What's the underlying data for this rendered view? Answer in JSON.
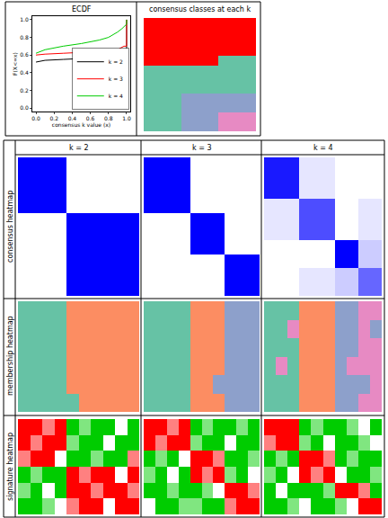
{
  "figure": {
    "row_titles": [
      "consensus heatmap",
      "membership heatmap",
      "signature heatmap"
    ]
  },
  "chart_data": [
    {
      "type": "line",
      "title": "ECDF",
      "x_label": "consensus k value (x)",
      "y_label": "F(X<=x)",
      "xlim": [
        -0.04,
        1.04
      ],
      "ylim": [
        -0.04,
        1.04
      ],
      "xticks": [
        {
          "value": 0,
          "label": "0.0"
        },
        {
          "value": 0.2,
          "label": "0.2"
        },
        {
          "value": 0.4,
          "label": "0.4"
        },
        {
          "value": 0.6,
          "label": "0.6"
        },
        {
          "value": 0.8,
          "label": "0.8"
        },
        {
          "value": 1,
          "label": "1.0"
        }
      ],
      "yticks": [
        {
          "value": 0,
          "label": "0.0"
        },
        {
          "value": 0.2,
          "label": "0.2"
        },
        {
          "value": 0.4,
          "label": "0.4"
        },
        {
          "value": 0.6,
          "label": "0.6"
        },
        {
          "value": 0.8,
          "label": "0.8"
        },
        {
          "value": 1,
          "label": "1.0"
        }
      ],
      "legend": "bottom right",
      "series": [
        {
          "name": "k = 2",
          "color": "#000000",
          "x": [
            0,
            0.1,
            0.3,
            0.5,
            0.7,
            0.9,
            0.97,
            1,
            1
          ],
          "values": [
            0.52,
            0.54,
            0.55,
            0.56,
            0.57,
            0.58,
            0.6,
            0.6,
            1
          ]
        },
        {
          "name": "k = 3",
          "color": "#ff0000",
          "x": [
            0,
            0.1,
            0.3,
            0.5,
            0.7,
            0.9,
            0.97,
            1,
            1
          ],
          "values": [
            0.6,
            0.61,
            0.62,
            0.63,
            0.64,
            0.66,
            0.7,
            0.7,
            1
          ]
        },
        {
          "name": "k = 4",
          "color": "#00cc00",
          "x": [
            0,
            0.1,
            0.3,
            0.5,
            0.7,
            0.8,
            0.9,
            0.95,
            1,
            1
          ],
          "values": [
            0.62,
            0.66,
            0.7,
            0.73,
            0.77,
            0.8,
            0.86,
            0.9,
            0.95,
            1
          ]
        }
      ]
    },
    {
      "type": "heatmap",
      "title": "consensus classes at each k",
      "tick_labels": false,
      "colors": [
        "#ff0000",
        "#66c2a5",
        "#8da0cb",
        "#e78ac3"
      ],
      "cells": [
        [
          1,
          1,
          1
        ],
        [
          1,
          1,
          1
        ],
        [
          1,
          1,
          1
        ],
        [
          1,
          1,
          1
        ],
        [
          1,
          1,
          2
        ],
        [
          2,
          2,
          2
        ],
        [
          2,
          2,
          2
        ],
        [
          2,
          2,
          2
        ],
        [
          2,
          3,
          3
        ],
        [
          2,
          3,
          3
        ],
        [
          2,
          3,
          4
        ],
        [
          2,
          3,
          4
        ]
      ]
    },
    {
      "type": "heatmap",
      "title": "k = 2",
      "tick_labels": false,
      "colors": [
        "#ffffff",
        "#0000ff"
      ],
      "color_range": [
        0,
        1
      ],
      "cells": [
        [
          1,
          1,
          1,
          1,
          0,
          0,
          0,
          0,
          0,
          0
        ],
        [
          1,
          1,
          1,
          1,
          0,
          0,
          0,
          0,
          0,
          0
        ],
        [
          1,
          1,
          1,
          1,
          0,
          0,
          0,
          0,
          0,
          0
        ],
        [
          1,
          1,
          1,
          1,
          0,
          0,
          0,
          0,
          0,
          0
        ],
        [
          0,
          0,
          0,
          0,
          1,
          1,
          1,
          1,
          1,
          1
        ],
        [
          0,
          0,
          0,
          0,
          1,
          1,
          1,
          1,
          1,
          1
        ],
        [
          0,
          0,
          0,
          0,
          1,
          1,
          1,
          1,
          1,
          1
        ],
        [
          0,
          0,
          0,
          0,
          1,
          1,
          1,
          1,
          1,
          1
        ],
        [
          0,
          0,
          0,
          0,
          1,
          1,
          1,
          1,
          1,
          1
        ],
        [
          0,
          0,
          0,
          0,
          1,
          1,
          1,
          1,
          1,
          1
        ]
      ]
    },
    {
      "type": "heatmap",
      "title": "k = 3",
      "tick_labels": false,
      "colors": [
        "#ffffff",
        "#0000ff"
      ],
      "color_range": [
        0,
        1
      ],
      "cells": [
        [
          1,
          1,
          1,
          1,
          0,
          0,
          0,
          0,
          0,
          0
        ],
        [
          1,
          1,
          1,
          1,
          0,
          0,
          0,
          0,
          0,
          0
        ],
        [
          1,
          1,
          1,
          1,
          0,
          0,
          0,
          0,
          0,
          0
        ],
        [
          1,
          1,
          1,
          1,
          0,
          0,
          0,
          0,
          0,
          0
        ],
        [
          0,
          0,
          0,
          0,
          1,
          1,
          1,
          0,
          0,
          0
        ],
        [
          0,
          0,
          0,
          0,
          1,
          1,
          1,
          0,
          0,
          0
        ],
        [
          0,
          0,
          0,
          0,
          1,
          1,
          1,
          0,
          0,
          0
        ],
        [
          0,
          0,
          0,
          0,
          0,
          0,
          0,
          1,
          1,
          1
        ],
        [
          0,
          0,
          0,
          0,
          0,
          0,
          0,
          1,
          1,
          1
        ],
        [
          0,
          0,
          0,
          0,
          0,
          0,
          0,
          1,
          1,
          1
        ]
      ]
    },
    {
      "type": "heatmap",
      "title": "k = 4",
      "tick_labels": false,
      "colors": [
        "#ffffff",
        "#0000ff"
      ],
      "color_range": [
        0,
        1
      ],
      "cells": [
        [
          0.9,
          0.9,
          0.9,
          0.1,
          0.1,
          0.1,
          0,
          0,
          0,
          0
        ],
        [
          0.9,
          0.9,
          0.9,
          0.1,
          0.1,
          0.1,
          0,
          0,
          0,
          0
        ],
        [
          0.9,
          0.9,
          0.9,
          0.1,
          0.1,
          0.1,
          0,
          0,
          0,
          0
        ],
        [
          0.1,
          0.1,
          0.1,
          0.7,
          0.7,
          0.7,
          0,
          0,
          0.1,
          0.1
        ],
        [
          0.1,
          0.1,
          0.1,
          0.7,
          0.7,
          0.7,
          0,
          0,
          0.1,
          0.1
        ],
        [
          0.1,
          0.1,
          0.1,
          0.7,
          0.7,
          0.7,
          0,
          0,
          0.1,
          0.1
        ],
        [
          0,
          0,
          0,
          0,
          0,
          0,
          1,
          1,
          0.2,
          0.2
        ],
        [
          0,
          0,
          0,
          0,
          0,
          0,
          1,
          1,
          0.2,
          0.2
        ],
        [
          0,
          0,
          0,
          0.1,
          0.1,
          0.1,
          0.2,
          0.2,
          0.6,
          0.6
        ],
        [
          0,
          0,
          0,
          0.1,
          0.1,
          0.1,
          0.2,
          0.2,
          0.6,
          0.6
        ]
      ]
    },
    {
      "type": "heatmap",
      "tick_labels": false,
      "colors": [
        "#66c2a5",
        "#fc8d62",
        "#8da0cb",
        "#e78ac3"
      ],
      "cells": [
        [
          1,
          1,
          1,
          1,
          2,
          2,
          2,
          2,
          2,
          2
        ],
        [
          1,
          1,
          1,
          1,
          2,
          2,
          2,
          2,
          2,
          2
        ],
        [
          1,
          1,
          1,
          1,
          2,
          2,
          2,
          2,
          2,
          2
        ],
        [
          1,
          1,
          1,
          1,
          2,
          2,
          2,
          2,
          2,
          2
        ],
        [
          1,
          1,
          1,
          1,
          2,
          2,
          2,
          2,
          2,
          2
        ],
        [
          1,
          1,
          1,
          1,
          1,
          2,
          2,
          2,
          2,
          2
        ]
      ]
    },
    {
      "type": "heatmap",
      "tick_labels": false,
      "colors": [
        "#66c2a5",
        "#fc8d62",
        "#8da0cb",
        "#e78ac3"
      ],
      "cells": [
        [
          1,
          1,
          1,
          1,
          2,
          2,
          2,
          3,
          3,
          3
        ],
        [
          1,
          1,
          1,
          1,
          2,
          2,
          2,
          3,
          3,
          3
        ],
        [
          1,
          1,
          1,
          1,
          2,
          2,
          2,
          3,
          3,
          3
        ],
        [
          1,
          1,
          1,
          1,
          2,
          2,
          2,
          3,
          3,
          3
        ],
        [
          1,
          1,
          1,
          1,
          2,
          2,
          3,
          3,
          3,
          3
        ],
        [
          1,
          1,
          1,
          1,
          2,
          2,
          2,
          3,
          3,
          3
        ]
      ]
    },
    {
      "type": "heatmap",
      "tick_labels": false,
      "colors": [
        "#66c2a5",
        "#fc8d62",
        "#8da0cb",
        "#e78ac3"
      ],
      "cells": [
        [
          1,
          1,
          1,
          2,
          2,
          2,
          3,
          3,
          4,
          4
        ],
        [
          1,
          1,
          4,
          2,
          2,
          2,
          3,
          3,
          4,
          3
        ],
        [
          1,
          1,
          1,
          2,
          2,
          2,
          3,
          3,
          4,
          4
        ],
        [
          1,
          4,
          1,
          2,
          2,
          2,
          3,
          4,
          4,
          4
        ],
        [
          1,
          1,
          1,
          2,
          2,
          2,
          3,
          3,
          3,
          4
        ],
        [
          1,
          1,
          1,
          2,
          2,
          2,
          3,
          3,
          4,
          4
        ]
      ]
    },
    {
      "type": "heatmap",
      "tick_labels": false,
      "colors": [
        "#00cc00",
        "#ffffff",
        "#ff0000"
      ],
      "color_range": [
        -1,
        1
      ],
      "cells": [
        [
          1,
          1,
          0.5,
          1,
          -1,
          -0.5,
          -1,
          -1,
          0,
          -1
        ],
        [
          1,
          0.5,
          1,
          1,
          -0.5,
          -1,
          -1,
          0,
          -1,
          -1
        ],
        [
          0.5,
          1,
          1,
          0,
          -1,
          -1,
          -0.5,
          -1,
          -1,
          0.5
        ],
        [
          -1,
          -0.5,
          -1,
          -1,
          1,
          0.5,
          1,
          1,
          0,
          1
        ],
        [
          -0.5,
          -1,
          0,
          -1,
          1,
          1,
          0.5,
          1,
          1,
          0.5
        ],
        [
          -1,
          -1,
          -0.5,
          0,
          0.5,
          1,
          1,
          0,
          1,
          1
        ]
      ]
    },
    {
      "type": "heatmap",
      "tick_labels": false,
      "colors": [
        "#00cc00",
        "#ffffff",
        "#ff0000"
      ],
      "color_range": [
        -1,
        1
      ],
      "cells": [
        [
          1,
          1,
          0.5,
          1,
          -1,
          -0.5,
          -1,
          -1,
          -0.5,
          -1
        ],
        [
          1,
          0.5,
          1,
          1,
          -0.5,
          -1,
          -1,
          0,
          -1,
          -1
        ],
        [
          -1,
          -0.5,
          -1,
          0,
          1,
          1,
          0.5,
          -1,
          -1,
          -0.5
        ],
        [
          -0.5,
          -1,
          0,
          -1,
          1,
          0.5,
          1,
          -0.5,
          -1,
          0
        ],
        [
          -1,
          -1,
          -0.5,
          -1,
          -1,
          -0.5,
          0,
          1,
          1,
          0.5
        ],
        [
          0,
          -1,
          -1,
          -0.5,
          -0.5,
          -1,
          -1,
          0.5,
          1,
          1
        ]
      ]
    },
    {
      "type": "heatmap",
      "tick_labels": false,
      "colors": [
        "#00cc00",
        "#ffffff",
        "#ff0000"
      ],
      "color_range": [
        -1,
        1
      ],
      "cells": [
        [
          1,
          1,
          1,
          -1,
          -0.5,
          -1,
          -1,
          -0.5,
          0,
          -1
        ],
        [
          0.5,
          1,
          1,
          -0.5,
          -1,
          0,
          -1,
          -1,
          -0.5,
          0
        ],
        [
          -1,
          -0.5,
          -1,
          1,
          1,
          0.5,
          -1,
          -0.5,
          -1,
          -1
        ],
        [
          -0.5,
          -1,
          0,
          1,
          0.5,
          1,
          0,
          -1,
          -1,
          -0.5
        ],
        [
          -1,
          0,
          -1,
          -1,
          -1,
          -0.5,
          1,
          1,
          0.5,
          -1
        ],
        [
          -1,
          -1,
          -0.5,
          0,
          -1,
          -1,
          -0.5,
          0,
          1,
          1
        ]
      ]
    }
  ]
}
